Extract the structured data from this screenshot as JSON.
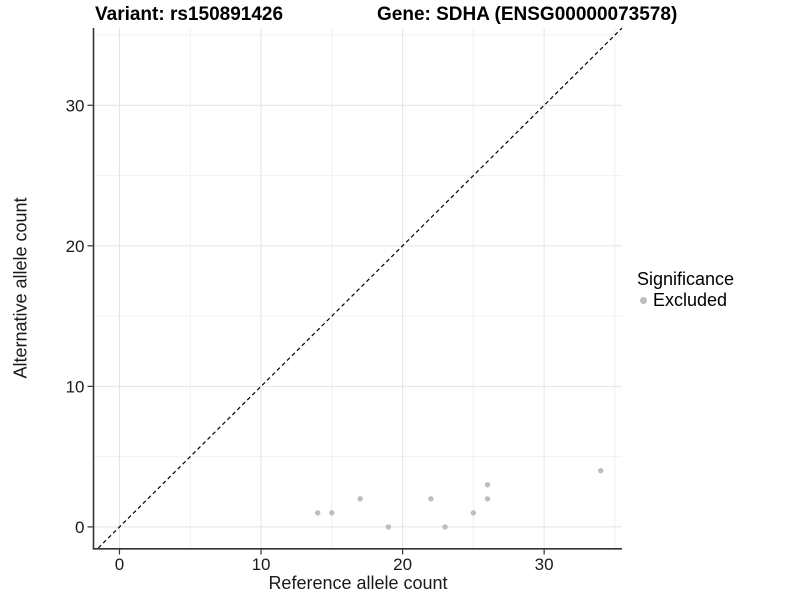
{
  "chart_data": {
    "type": "scatter",
    "title_variant": "Variant: rs150891426",
    "title_gene": "Gene: SDHA (ENSG00000073578)",
    "xlabel": "Reference allele count",
    "ylabel": "Alternative allele count",
    "xlim": [
      -1.8,
      35.5
    ],
    "ylim": [
      -1.5,
      35.5
    ],
    "x_ticks": [
      0,
      10,
      20,
      30
    ],
    "y_ticks": [
      0,
      10,
      20,
      30
    ],
    "x_minor_gridlines": [
      5,
      15,
      25,
      35
    ],
    "y_minor_gridlines": [
      5,
      15,
      25,
      35
    ],
    "grid": true,
    "legend_position": "right",
    "identity_line": {
      "equation": "y = x",
      "style": "dashed",
      "color": "#000000"
    },
    "series": [
      {
        "name": "Excluded",
        "marker": "circle",
        "color": "#bebebe",
        "points": [
          [
            14,
            1
          ],
          [
            15,
            1
          ],
          [
            17,
            2
          ],
          [
            19,
            0
          ],
          [
            22,
            2
          ],
          [
            23,
            0
          ],
          [
            25,
            1
          ],
          [
            26,
            2
          ],
          [
            26,
            3
          ],
          [
            34,
            4
          ]
        ]
      }
    ]
  },
  "legend": {
    "title": "Significance",
    "items": [
      {
        "label": "Excluded",
        "color": "#bebebe"
      }
    ]
  },
  "colors": {
    "background": "#ffffff",
    "grid_major": "#e4e4e4",
    "grid_minor": "#f0f0f0",
    "axis_line": "#333333",
    "tick_mark": "#333333",
    "point": "#bebebe",
    "identity_line": "#000000",
    "text": "#1a1a1a"
  }
}
